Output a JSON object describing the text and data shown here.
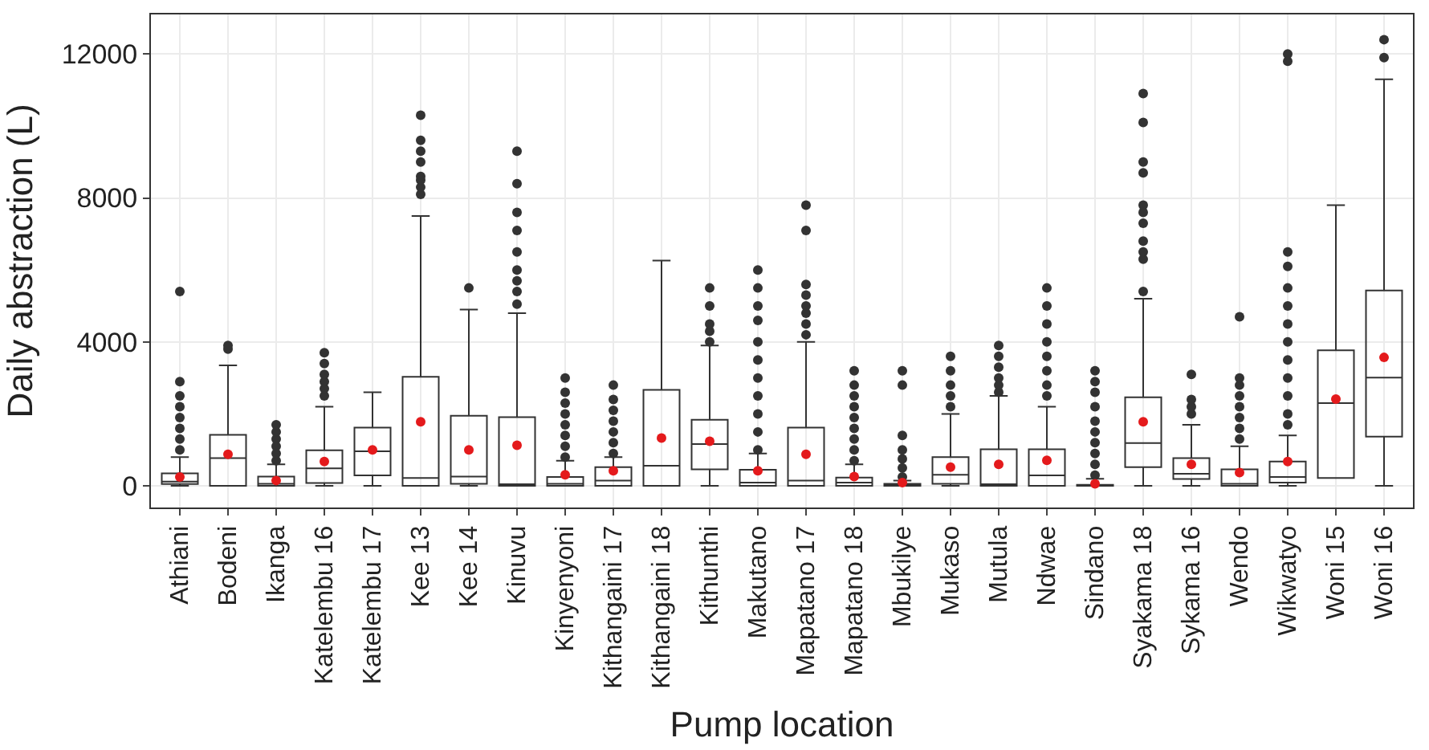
{
  "chart_data": {
    "type": "box",
    "xlabel": "Pump location",
    "ylabel": "Daily abstraction (L)",
    "categories": [
      "Athiani",
      "Bodeni",
      "Ikanga",
      "Katelembu 16",
      "Katelembu 17",
      "Kee 13",
      "Kee 14",
      "Kinuvu",
      "Kinyenyoni",
      "Kithangaini 17",
      "Kithangaini 18",
      "Kithunthi",
      "Makutano",
      "Mapatano 17",
      "Mapatano 18",
      "Mbukilye",
      "Mukaso",
      "Mutula",
      "Ndwae",
      "Sindano",
      "Syakama 18",
      "Sykama 16",
      "Wendo",
      "Wikwatyo",
      "Woni 15",
      "Woni 16"
    ],
    "boxes": [
      {
        "low": 0,
        "q1": 50,
        "median": 120,
        "q3": 350,
        "high": 800,
        "mean": 250,
        "outliers": [
          1000,
          1300,
          1600,
          1900,
          2200,
          2500,
          2900,
          5400
        ]
      },
      {
        "low": 0,
        "q1": 0,
        "median": 770,
        "q3": 1420,
        "high": 3350,
        "mean": 880,
        "outliers": [
          3800,
          3900
        ]
      },
      {
        "low": 0,
        "q1": 0,
        "median": 60,
        "q3": 260,
        "high": 600,
        "mean": 150,
        "outliers": [
          700,
          900,
          1100,
          1300,
          1500,
          1700
        ]
      },
      {
        "low": 0,
        "q1": 80,
        "median": 490,
        "q3": 990,
        "high": 2200,
        "mean": 680,
        "outliers": [
          2500,
          2700,
          2900,
          3100,
          3400,
          3700
        ]
      },
      {
        "low": 0,
        "q1": 290,
        "median": 960,
        "q3": 1620,
        "high": 2600,
        "mean": 1000
      },
      {
        "low": 0,
        "q1": 0,
        "median": 220,
        "q3": 3030,
        "high": 7500,
        "mean": 1780,
        "outliers": [
          8100,
          8300,
          8500,
          8600,
          9000,
          9300,
          9600,
          10300
        ]
      },
      {
        "low": 0,
        "q1": 60,
        "median": 260,
        "q3": 1950,
        "high": 4900,
        "mean": 1000,
        "outliers": [
          5500
        ]
      },
      {
        "low": 0,
        "q1": 0,
        "median": 30,
        "q3": 1910,
        "high": 4800,
        "mean": 1130,
        "outliers": [
          5050,
          5400,
          5700,
          6000,
          6500,
          7100,
          7600,
          8400,
          9300
        ]
      },
      {
        "low": 0,
        "q1": 0,
        "median": 60,
        "q3": 250,
        "high": 700,
        "mean": 310,
        "outliers": [
          800,
          1100,
          1400,
          1700,
          2000,
          2300,
          2600,
          3000
        ]
      },
      {
        "low": 0,
        "q1": 0,
        "median": 150,
        "q3": 520,
        "high": 800,
        "mean": 420,
        "outliers": [
          900,
          1200,
          1500,
          1800,
          2100,
          2400,
          2800
        ]
      },
      {
        "low": 0,
        "q1": 0,
        "median": 560,
        "q3": 2670,
        "high": 6260,
        "mean": 1330
      },
      {
        "low": 0,
        "q1": 460,
        "median": 1160,
        "q3": 1840,
        "high": 3900,
        "mean": 1240,
        "outliers": [
          4000,
          4300,
          4500,
          5000,
          5500
        ]
      },
      {
        "low": 0,
        "q1": 0,
        "median": 90,
        "q3": 450,
        "high": 900,
        "mean": 420,
        "outliers": [
          1000,
          1500,
          2000,
          2500,
          3000,
          3500,
          4000,
          4600,
          5000,
          5500,
          6000
        ]
      },
      {
        "low": 0,
        "q1": 0,
        "median": 150,
        "q3": 1620,
        "high": 4000,
        "mean": 880,
        "outliers": [
          4200,
          4500,
          4800,
          5000,
          5300,
          5600,
          7100,
          7800
        ]
      },
      {
        "low": 0,
        "q1": 0,
        "median": 90,
        "q3": 230,
        "high": 600,
        "mean": 260,
        "outliers": [
          700,
          1000,
          1300,
          1600,
          1900,
          2200,
          2500,
          2800,
          3200
        ]
      },
      {
        "low": 0,
        "q1": 0,
        "median": 10,
        "q3": 60,
        "high": 150,
        "mean": 90,
        "outliers": [
          250,
          500,
          750,
          1000,
          1400,
          2800,
          3200
        ]
      },
      {
        "low": 0,
        "q1": 60,
        "median": 310,
        "q3": 800,
        "high": 2000,
        "mean": 520,
        "outliers": [
          2200,
          2500,
          2800,
          3200,
          3600
        ]
      },
      {
        "low": 0,
        "q1": 0,
        "median": 30,
        "q3": 1020,
        "high": 2500,
        "mean": 600,
        "outliers": [
          2600,
          2800,
          3000,
          3300,
          3600,
          3900
        ]
      },
      {
        "low": 0,
        "q1": 0,
        "median": 290,
        "q3": 1020,
        "high": 2200,
        "mean": 710,
        "outliers": [
          2500,
          2800,
          3200,
          3600,
          4000,
          4500,
          5000,
          5500
        ]
      },
      {
        "low": 0,
        "q1": 0,
        "median": 0,
        "q3": 30,
        "high": 200,
        "mean": 60,
        "outliers": [
          300,
          600,
          900,
          1200,
          1500,
          1800,
          2200,
          2600,
          2900,
          3200
        ]
      },
      {
        "low": 0,
        "q1": 520,
        "median": 1190,
        "q3": 2460,
        "high": 5200,
        "mean": 1780,
        "outliers": [
          5400,
          6300,
          6500,
          6800,
          7300,
          7600,
          7800,
          8700,
          9000,
          10100,
          10900
        ]
      },
      {
        "low": 0,
        "q1": 190,
        "median": 340,
        "q3": 770,
        "high": 1700,
        "mean": 600,
        "outliers": [
          2000,
          2200,
          2400,
          3100
        ]
      },
      {
        "low": 0,
        "q1": 0,
        "median": 60,
        "q3": 460,
        "high": 1100,
        "mean": 370,
        "outliers": [
          1300,
          1600,
          1900,
          2200,
          2500,
          2800,
          3000,
          4700
        ]
      },
      {
        "low": 0,
        "q1": 90,
        "median": 250,
        "q3": 680,
        "high": 1400,
        "mean": 680,
        "outliers": [
          1700,
          2000,
          2500,
          3000,
          3500,
          4000,
          4500,
          5000,
          5500,
          6100,
          6500,
          11800,
          12000
        ]
      },
      {
        "low": 220,
        "q1": 220,
        "median": 2300,
        "q3": 3770,
        "high": 7800,
        "mean": 2410
      },
      {
        "low": 0,
        "q1": 1370,
        "median": 3010,
        "q3": 5430,
        "high": 11300,
        "mean": 3570,
        "outliers": [
          11900,
          12400
        ]
      }
    ],
    "ylim": [
      -600,
      13100
    ],
    "yticks": [
      0,
      4000,
      8000,
      12000
    ],
    "grid": true
  }
}
